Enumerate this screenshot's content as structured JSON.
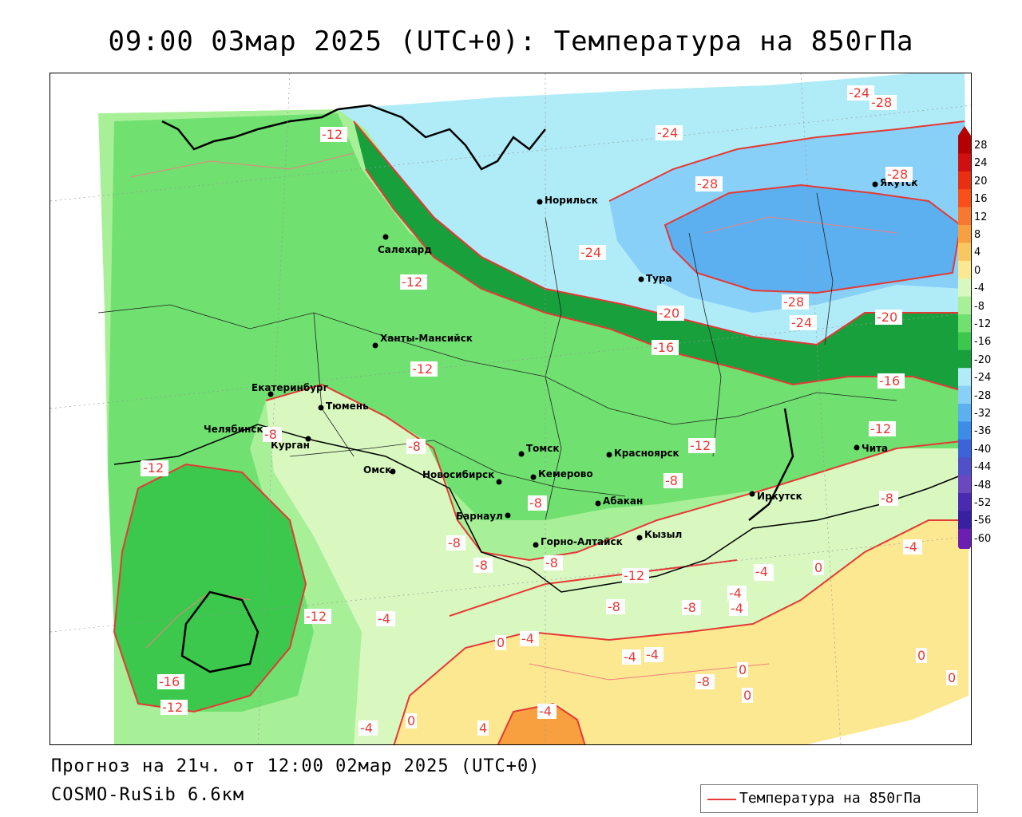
{
  "title": "09:00 03мар 2025 (UTC+0): Температура на 850гПа",
  "footer": {
    "forecast": "Прогноз на 21ч. от 12:00 02мар 2025 (UTC+0)",
    "model": "COSMO-RuSib 6.6км"
  },
  "legend": {
    "label": "Температура на 850гПа",
    "line_color": "#e53935"
  },
  "colorbar": {
    "levels": [
      "28",
      "24",
      "20",
      "16",
      "12",
      "8",
      "4",
      "0",
      "-4",
      "-8",
      "-12",
      "-16",
      "-20",
      "-24",
      "-28",
      "-32",
      "-36",
      "-40",
      "-44",
      "-48",
      "-52",
      "-56",
      "-60"
    ],
    "colors": [
      "#b40000",
      "#d01010",
      "#e83010",
      "#f85018",
      "#f87830",
      "#f8a040",
      "#f8c860",
      "#fce890",
      "#d8f8c0",
      "#a8f098",
      "#70e070",
      "#3cc84c",
      "#18a03c",
      "#b0ecf8",
      "#88d0f8",
      "#5cb0f0",
      "#3c8ce8",
      "#3c64d8",
      "#5050c8",
      "#6a48c0",
      "#4a2ab0",
      "#3820a0",
      "#6a1fb0"
    ]
  },
  "cities": [
    {
      "name": "Норильск"
    },
    {
      "name": "Салехард"
    },
    {
      "name": "Якутск"
    },
    {
      "name": "Тура"
    },
    {
      "name": "Ханты-Мансийск"
    },
    {
      "name": "Екатеринбург"
    },
    {
      "name": "Тюмень"
    },
    {
      "name": "Челябинск"
    },
    {
      "name": "Курган"
    },
    {
      "name": "Омск"
    },
    {
      "name": "Новосибирск"
    },
    {
      "name": "Томск"
    },
    {
      "name": "Кемерово"
    },
    {
      "name": "Красноярск"
    },
    {
      "name": "Барнаул"
    },
    {
      "name": "Абакан"
    },
    {
      "name": "Горно-Алтайск"
    },
    {
      "name": "Кызыл"
    },
    {
      "name": "Иркутск"
    },
    {
      "name": "Чита"
    }
  ],
  "isotherm_labels": [
    "-12",
    "-24",
    "-28",
    "-24",
    "-28",
    "-28",
    "-24",
    "-28",
    "-24",
    "-20",
    "-20",
    "-16",
    "-16",
    "-12",
    "-12",
    "-12",
    "-12",
    "-8",
    "-8",
    "-12",
    "-8",
    "-8",
    "-8",
    "-4",
    "-8",
    "-12",
    "-8",
    "-4",
    "-8",
    "-8",
    "-4",
    "-4",
    "-4",
    "-4",
    "-12",
    "-12",
    "-16",
    "-12",
    "0",
    "-4",
    "0",
    "-4",
    "-4",
    "0",
    "0",
    "0",
    "0",
    "-4",
    "0",
    "4",
    "-4",
    "-8",
    "-8"
  ]
}
